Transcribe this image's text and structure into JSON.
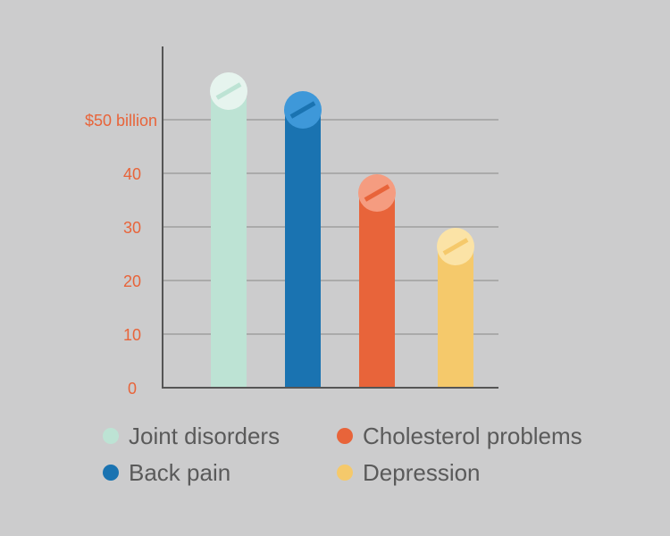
{
  "chart_data": {
    "type": "bar",
    "title": "",
    "xlabel": "",
    "ylabel": "",
    "categories": [
      "Joint disorders",
      "Back pain",
      "Cholesterol problems",
      "Depression"
    ],
    "values": [
      55,
      51.5,
      36,
      26
    ],
    "ylim": [
      0,
      50
    ],
    "y_ticks": [
      0,
      10,
      20,
      30,
      40,
      50
    ],
    "y_tick_labels": [
      "0",
      "10",
      "20",
      "30",
      "40",
      "$50 billion"
    ],
    "grid": true,
    "legend_position": "bottom",
    "bar_colors": [
      "#bde3d4",
      "#1a73b1",
      "#e8643a",
      "#f5c96b"
    ],
    "cap_colors": [
      "#e6f4ee",
      "#3e98d9",
      "#f59c80",
      "#fbe3a6"
    ],
    "cap_stripe_colors": [
      "#bde3d4",
      "#1a73b1",
      "#e8643a",
      "#f5c96b"
    ],
    "tick_label_color": "#e8643a",
    "axis_color": "#555555",
    "grid_color": "#888888"
  },
  "legend": {
    "items": [
      {
        "label": "Joint disorders",
        "color": "#bde3d4"
      },
      {
        "label": "Cholesterol problems",
        "color": "#e8643a"
      },
      {
        "label": "Back pain",
        "color": "#1a73b1"
      },
      {
        "label": "Depression",
        "color": "#f5c96b"
      }
    ]
  }
}
